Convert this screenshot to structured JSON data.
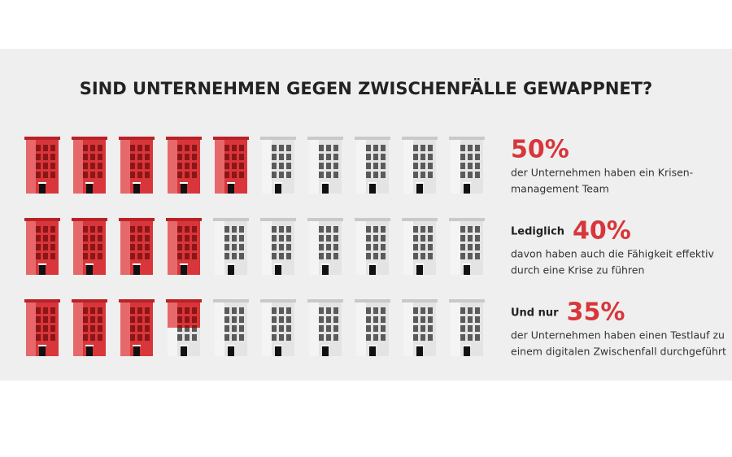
{
  "chart_data": {
    "type": "pictogram",
    "title": "SIND UNTERNEHMEN GEGEN ZWISCHENFÄLLE GEWAPPNET?",
    "color": "#d8363a",
    "empty_color": "#e4e4e4",
    "rows": [
      {
        "value": 50,
        "value_label": "50%",
        "description": [
          "der Unternehmen haben ein Krisen-",
          "management Team"
        ]
      },
      {
        "lead": "Lediglich",
        "value": 40,
        "value_label": "40%",
        "description": [
          "davon haben auch die Fähigkeit effektiv",
          "durch eine Krise zu führen"
        ]
      },
      {
        "lead": "Und nur",
        "value": 35,
        "value_label": "35%",
        "description": [
          "der Unternehmen haben einen Testlauf zu",
          "einem digitalen Zwischenfall durchgeführt"
        ]
      }
    ]
  }
}
